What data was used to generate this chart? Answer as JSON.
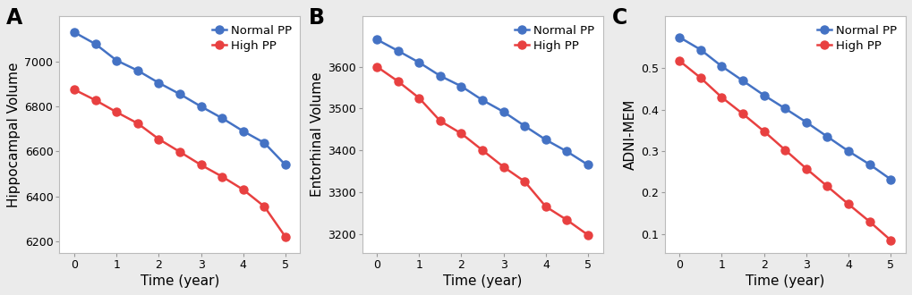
{
  "panels": [
    {
      "label": "A",
      "ylabel": "Hippocampal Volume",
      "xlabel": "Time (year)",
      "normal_pp": [
        7130,
        7078,
        7005,
        6960,
        6905,
        6855,
        6800,
        6748,
        6690,
        6638,
        6540
      ],
      "high_pp": [
        6875,
        6828,
        6775,
        6725,
        6655,
        6598,
        6540,
        6488,
        6430,
        6355,
        6220
      ],
      "x": [
        0,
        0.5,
        1,
        1.5,
        2,
        2.5,
        3,
        3.5,
        4,
        4.5,
        5
      ],
      "ylim": [
        6150,
        7200
      ],
      "yticks": [
        6200,
        6400,
        6600,
        6800,
        7000
      ]
    },
    {
      "label": "B",
      "ylabel": "Entorhinal Volume",
      "xlabel": "Time (year)",
      "normal_pp": [
        3665,
        3638,
        3610,
        3578,
        3553,
        3520,
        3492,
        3458,
        3425,
        3397,
        3365
      ],
      "high_pp": [
        3600,
        3565,
        3525,
        3470,
        3440,
        3400,
        3360,
        3325,
        3265,
        3233,
        3197
      ],
      "x": [
        0,
        0.5,
        1,
        1.5,
        2,
        2.5,
        3,
        3.5,
        4,
        4.5,
        5
      ],
      "ylim": [
        3155,
        3720
      ],
      "yticks": [
        3200,
        3300,
        3400,
        3500,
        3600
      ]
    },
    {
      "label": "C",
      "ylabel": "ADNI-MEM",
      "xlabel": "Time (year)",
      "normal_pp": [
        0.575,
        0.545,
        0.505,
        0.47,
        0.435,
        0.403,
        0.37,
        0.335,
        0.3,
        0.268,
        0.232
      ],
      "high_pp": [
        0.518,
        0.477,
        0.43,
        0.39,
        0.348,
        0.303,
        0.258,
        0.215,
        0.172,
        0.13,
        0.085
      ],
      "x": [
        0,
        0.5,
        1,
        1.5,
        2,
        2.5,
        3,
        3.5,
        4,
        4.5,
        5
      ],
      "ylim": [
        0.055,
        0.625
      ],
      "yticks": [
        0.1,
        0.2,
        0.3,
        0.4,
        0.5
      ]
    }
  ],
  "blue_color": "#4472C4",
  "red_color": "#E84040",
  "fig_bg_color": "#EBEBEB",
  "plot_bg_color": "#FFFFFF",
  "legend_normal": "Normal PP",
  "legend_high": "High PP",
  "xticks": [
    0,
    1,
    2,
    3,
    4,
    5
  ],
  "linewidth": 1.8,
  "markersize": 6.5,
  "label_fontsize": 11,
  "tick_fontsize": 9,
  "legend_fontsize": 9.5,
  "panel_label_fontsize": 17
}
